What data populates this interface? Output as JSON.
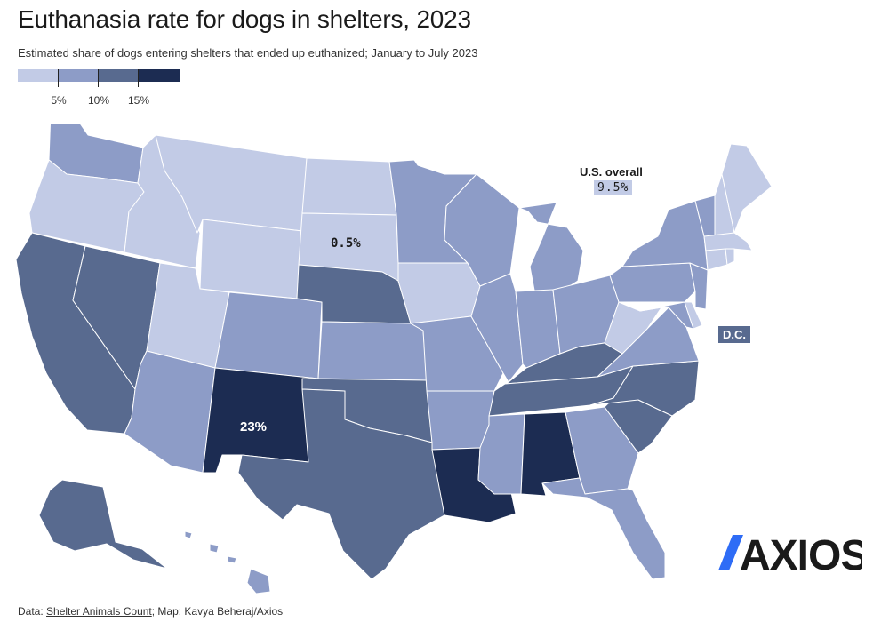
{
  "title": "Euthanasia rate for dogs in shelters, 2023",
  "subtitle": "Estimated share of dogs entering shelters that ended up euthanized; January to July 2023",
  "legend": {
    "bins": [
      {
        "color": "#c2cbe6"
      },
      {
        "color": "#8d9cc7"
      },
      {
        "color": "#586a8f"
      },
      {
        "color": "#1c2c52"
      }
    ],
    "labels": [
      "5%",
      "10%",
      "15%"
    ]
  },
  "colors": {
    "bin1": "#c2cbe6",
    "bin2": "#8d9cc7",
    "bin3": "#586a8f",
    "bin4": "#1c2c52"
  },
  "callouts": {
    "us_overall_label": "U.S. overall",
    "us_overall_value": "9.5%",
    "dc_label": "D.C."
  },
  "map_labels": {
    "south_dakota": "0.5%",
    "new_mexico": "23%"
  },
  "states": [
    {
      "name": "Washington",
      "bin": 2
    },
    {
      "name": "Oregon",
      "bin": 1
    },
    {
      "name": "California",
      "bin": 3
    },
    {
      "name": "Idaho",
      "bin": 1
    },
    {
      "name": "Nevada",
      "bin": 3
    },
    {
      "name": "Montana",
      "bin": 1
    },
    {
      "name": "Wyoming",
      "bin": 1
    },
    {
      "name": "Utah",
      "bin": 1
    },
    {
      "name": "Arizona",
      "bin": 2
    },
    {
      "name": "Colorado",
      "bin": 2
    },
    {
      "name": "New Mexico",
      "bin": 4
    },
    {
      "name": "North Dakota",
      "bin": 1
    },
    {
      "name": "South Dakota",
      "bin": 1
    },
    {
      "name": "Nebraska",
      "bin": 3
    },
    {
      "name": "Kansas",
      "bin": 2
    },
    {
      "name": "Oklahoma",
      "bin": 3
    },
    {
      "name": "Texas",
      "bin": 3
    },
    {
      "name": "Minnesota",
      "bin": 2
    },
    {
      "name": "Iowa",
      "bin": 1
    },
    {
      "name": "Missouri",
      "bin": 2
    },
    {
      "name": "Arkansas",
      "bin": 2
    },
    {
      "name": "Louisiana",
      "bin": 4
    },
    {
      "name": "Wisconsin",
      "bin": 2
    },
    {
      "name": "Illinois",
      "bin": 2
    },
    {
      "name": "Michigan",
      "bin": 2
    },
    {
      "name": "Indiana",
      "bin": 2
    },
    {
      "name": "Ohio",
      "bin": 2
    },
    {
      "name": "Kentucky",
      "bin": 3
    },
    {
      "name": "Tennessee",
      "bin": 3
    },
    {
      "name": "Mississippi",
      "bin": 2
    },
    {
      "name": "Alabama",
      "bin": 4
    },
    {
      "name": "Georgia",
      "bin": 2
    },
    {
      "name": "Florida",
      "bin": 2
    },
    {
      "name": "South Carolina",
      "bin": 3
    },
    {
      "name": "North Carolina",
      "bin": 3
    },
    {
      "name": "Virginia",
      "bin": 2
    },
    {
      "name": "West Virginia",
      "bin": 1
    },
    {
      "name": "Pennsylvania",
      "bin": 2
    },
    {
      "name": "New York",
      "bin": 2
    },
    {
      "name": "Maryland",
      "bin": 2
    },
    {
      "name": "Delaware",
      "bin": 1
    },
    {
      "name": "New Jersey",
      "bin": 2
    },
    {
      "name": "Vermont",
      "bin": 2
    },
    {
      "name": "New Hampshire",
      "bin": 1
    },
    {
      "name": "Maine",
      "bin": 1
    },
    {
      "name": "Massachusetts",
      "bin": 1
    },
    {
      "name": "Connecticut",
      "bin": 1
    },
    {
      "name": "Rhode Island",
      "bin": 1
    },
    {
      "name": "Alaska",
      "bin": 3
    },
    {
      "name": "Hawaii",
      "bin": 2
    }
  ],
  "logo": {
    "text": "AXIOS",
    "accent_color": "#2e6cf6",
    "text_color": "#1a1a1a"
  },
  "source": {
    "prefix": "Data: ",
    "link": "Shelter Animals Count",
    "suffix": "; Map: Kavya Beheraj/Axios"
  }
}
